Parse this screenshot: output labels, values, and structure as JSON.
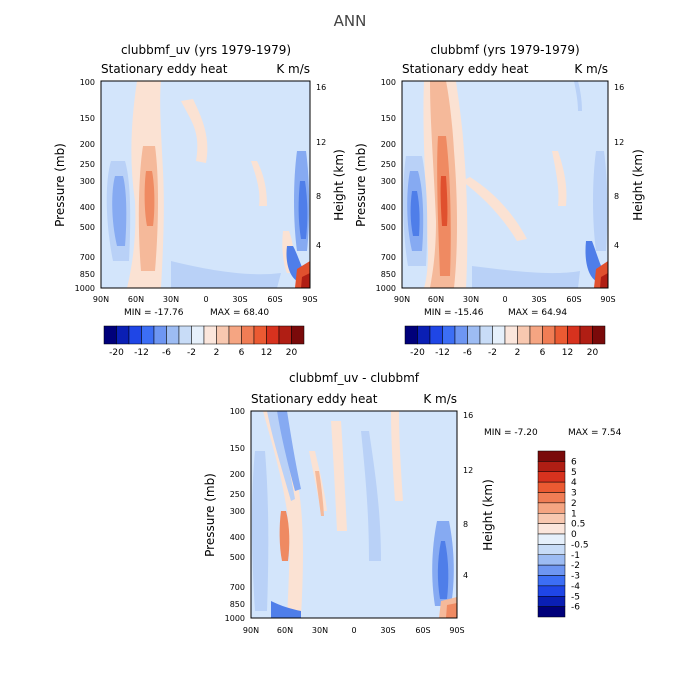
{
  "page_title": "ANN",
  "chart_data": [
    {
      "type": "heatmap",
      "title": "clubbmf_uv (yrs 1979-1979)",
      "subtitle_left": "Stationary eddy heat",
      "subtitle_right": "K m/s",
      "ylabel": "Pressure (mb)",
      "y2label": "Height (km)",
      "x_ticks": [
        "90N",
        "60N",
        "30N",
        "0",
        "30S",
        "60S",
        "90S"
      ],
      "y_ticks": [
        "100",
        "150",
        "200",
        "250",
        "300",
        "400",
        "500",
        "700",
        "850",
        "1000"
      ],
      "y2_ticks": [
        "16",
        "12",
        "8",
        "4"
      ],
      "min_label": "MIN = -17.76",
      "max_label": "MAX = 68.40",
      "features": [
        {
          "lat": 70,
          "p": 450,
          "value": -8
        },
        {
          "lat": 50,
          "p": 400,
          "value": 6
        },
        {
          "lat": -80,
          "p": 400,
          "value": -6
        },
        {
          "lat": -88,
          "p": 950,
          "value": 20
        }
      ]
    },
    {
      "type": "heatmap",
      "title": "clubbmf (yrs 1979-1979)",
      "subtitle_left": "Stationary eddy heat",
      "subtitle_right": "K m/s",
      "ylabel": "Pressure (mb)",
      "y2label": "Height (km)",
      "x_ticks": [
        "90N",
        "60N",
        "30N",
        "0",
        "30S",
        "60S",
        "90S"
      ],
      "y_ticks": [
        "100",
        "150",
        "200",
        "250",
        "300",
        "400",
        "500",
        "700",
        "850",
        "1000"
      ],
      "y2_ticks": [
        "16",
        "12",
        "8",
        "4"
      ],
      "min_label": "MIN = -15.46",
      "max_label": "MAX = 64.94",
      "features": [
        {
          "lat": 75,
          "p": 450,
          "value": -10
        },
        {
          "lat": 50,
          "p": 400,
          "value": 6
        },
        {
          "lat": -80,
          "p": 400,
          "value": -4
        },
        {
          "lat": -88,
          "p": 950,
          "value": 20
        }
      ]
    },
    {
      "type": "heatmap",
      "title": "clubbmf_uv - clubbmf",
      "subtitle_left": "Stationary eddy heat",
      "subtitle_right": "K m/s",
      "ylabel": "Pressure (mb)",
      "y2label": "Height (km)",
      "x_ticks": [
        "90N",
        "60N",
        "30N",
        "0",
        "30S",
        "60S",
        "90S"
      ],
      "y_ticks": [
        "100",
        "150",
        "200",
        "250",
        "300",
        "400",
        "500",
        "700",
        "850",
        "1000"
      ],
      "y2_ticks": [
        "16",
        "12",
        "8",
        "4"
      ],
      "min_label": "MIN =   -7.20",
      "max_label": "MAX =    7.54",
      "features": [
        {
          "lat": 70,
          "p": 200,
          "value": -1.5
        },
        {
          "lat": 55,
          "p": 400,
          "value": 1
        },
        {
          "lat": -80,
          "p": 450,
          "value": -2
        },
        {
          "lat": -88,
          "p": 950,
          "value": 4
        }
      ]
    }
  ],
  "colorbar_top": {
    "labels": [
      "-20",
      "-12",
      "-6",
      "-2",
      "2",
      "6",
      "12",
      "20"
    ],
    "colors": [
      "#00007a",
      "#0a1fb4",
      "#1f46e6",
      "#3c6ef5",
      "#6e96f2",
      "#9dbcf3",
      "#c8dcf7",
      "#e6f0fb",
      "#fbe6dc",
      "#f8c8b0",
      "#f5a582",
      "#f07d55",
      "#eb5a32",
      "#d7321e",
      "#b01e14",
      "#7a0a0a"
    ]
  },
  "colorbar_bottom": {
    "labels": [
      "6",
      "5",
      "4",
      "3",
      "2",
      "1",
      "0.5",
      "0",
      "-0.5",
      "-1",
      "-2",
      "-3",
      "-4",
      "-5",
      "-6"
    ],
    "colors": [
      "#7a0a0a",
      "#b01e14",
      "#d7321e",
      "#eb5a32",
      "#f07d55",
      "#f5a582",
      "#f8c8b0",
      "#fbe6dc",
      "#e6f0fb",
      "#c8dcf7",
      "#9dbcf3",
      "#6e96f2",
      "#3c6ef5",
      "#1f46e6",
      "#0a1fb4",
      "#00007a"
    ]
  },
  "colors": {
    "bg_field": "#d3e5fb",
    "light_red": "#fbe2d3",
    "mid_red": "#f5b99a",
    "red": "#ef8a62",
    "strong_red": "#e0502e",
    "light_blue": "#b9d1f7",
    "mid_blue": "#86aaf2",
    "blue": "#4f7ee9",
    "dark_blue": "#2b53d9"
  }
}
